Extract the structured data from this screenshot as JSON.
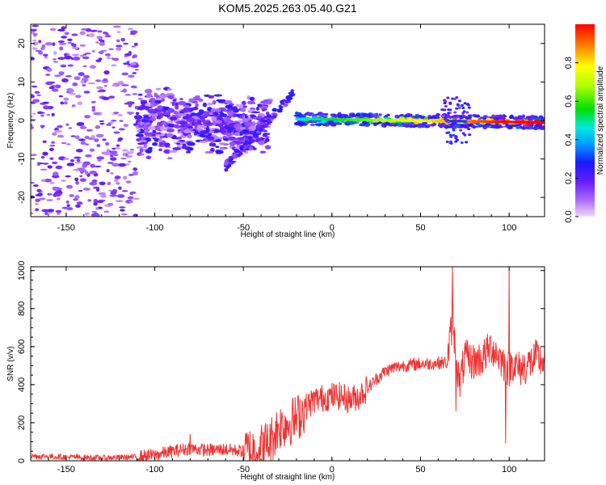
{
  "title": "KOM5.2025.263.05.40.G21",
  "chart_data": [
    {
      "type": "heatmap",
      "xlabel": "Height of straight line (km)",
      "ylabel": "Frequency (Hz)",
      "xlim": [
        -170,
        120
      ],
      "ylim": [
        -25,
        25
      ],
      "xticks": [
        -150,
        -100,
        -50,
        0,
        50,
        100
      ],
      "yticks": [
        -20,
        -10,
        0,
        10,
        20
      ],
      "colorbar": {
        "label": "Normalized spectral amplitude",
        "range": [
          0,
          1
        ],
        "ticks": [
          0.0,
          0.2,
          0.4,
          0.6,
          0.8
        ]
      },
      "description_series": [
        {
          "name": "scattered weak returns",
          "x_range": [
            -170,
            -110
          ],
          "y_range": [
            -25,
            25
          ],
          "amplitude": 0.15
        },
        {
          "name": "diffuse cluster",
          "x_range": [
            -110,
            -35
          ],
          "y_range": [
            -12,
            10
          ],
          "amplitude": 0.25
        },
        {
          "name": "rising streak",
          "x": [
            -60,
            -45,
            -30,
            -22
          ],
          "y": [
            -12,
            -5,
            3,
            7
          ],
          "amplitude": 0.3
        },
        {
          "name": "stable line",
          "x_range": [
            -20,
            120
          ],
          "y": [
            0.4,
            -0.5
          ],
          "amplitude": [
            0.3,
            1.0
          ]
        }
      ]
    },
    {
      "type": "line",
      "xlabel": "Height of straight line (km)",
      "ylabel": "SNR (v/v)",
      "xlim": [
        -170,
        120
      ],
      "ylim": [
        0,
        1020
      ],
      "xticks": [
        -150,
        -100,
        -50,
        0,
        50,
        100
      ],
      "yticks": [
        0,
        200,
        400,
        600,
        800,
        1000
      ],
      "series": [
        {
          "name": "SNR",
          "color": "#ee3333",
          "x": [
            -170,
            -150,
            -130,
            -110,
            -100,
            -90,
            -80,
            -70,
            -60,
            -50,
            -45,
            -40,
            -35,
            -30,
            -25,
            -20,
            -15,
            -10,
            -5,
            0,
            5,
            10,
            15,
            20,
            25,
            30,
            35,
            40,
            45,
            50,
            55,
            60,
            65,
            68,
            70,
            72,
            75,
            80,
            85,
            90,
            95,
            98,
            100,
            102,
            105,
            110,
            115,
            120
          ],
          "y": [
            25,
            20,
            15,
            20,
            30,
            50,
            65,
            55,
            60,
            50,
            55,
            70,
            100,
            180,
            200,
            220,
            280,
            320,
            330,
            340,
            340,
            320,
            340,
            380,
            430,
            470,
            490,
            500,
            505,
            510,
            510,
            515,
            515,
            740,
            560,
            400,
            540,
            520,
            540,
            600,
            540,
            500,
            480,
            520,
            480,
            500,
            540,
            520
          ]
        }
      ],
      "spikes": [
        {
          "x": 68,
          "y": 1020
        },
        {
          "x": 70,
          "y": 260
        },
        {
          "x": 98,
          "y": 90
        },
        {
          "x": 100,
          "y": 1020
        },
        {
          "x": -80,
          "y": 140
        }
      ]
    }
  ],
  "colors": {
    "line": "#ee3333",
    "background": "#ffffff",
    "axis": "#000000"
  }
}
